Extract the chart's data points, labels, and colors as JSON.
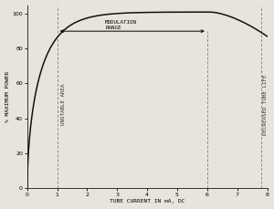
{
  "title": "",
  "xlabel": "TUBE CURRENT IN mA, DC",
  "ylabel": "% MAXIMUM POWER",
  "xlim": [
    0,
    8
  ],
  "ylim": [
    0,
    105
  ],
  "xticks": [
    0,
    1,
    2,
    3,
    4,
    5,
    6,
    7,
    8
  ],
  "yticks": [
    0,
    20,
    40,
    60,
    80,
    100
  ],
  "dashed_line_x1": 1.0,
  "dashed_line_x2": 7.8,
  "modulation_range_x1": 1.0,
  "modulation_range_x2": 6.0,
  "modulation_range_y": 90,
  "modulation_label_line1": "MODULATION",
  "modulation_label_line2": "RANGE",
  "unstable_label": "UNSTABLE AREA",
  "decreased_label": "DECREASED TUBE LIFE",
  "curve_color": "#111111",
  "background_color": "#e8e4dc",
  "dashed_color": "#888888",
  "fontsize_axis_label": 4.5,
  "fontsize_tick": 4.5,
  "fontsize_annotation": 4.2
}
